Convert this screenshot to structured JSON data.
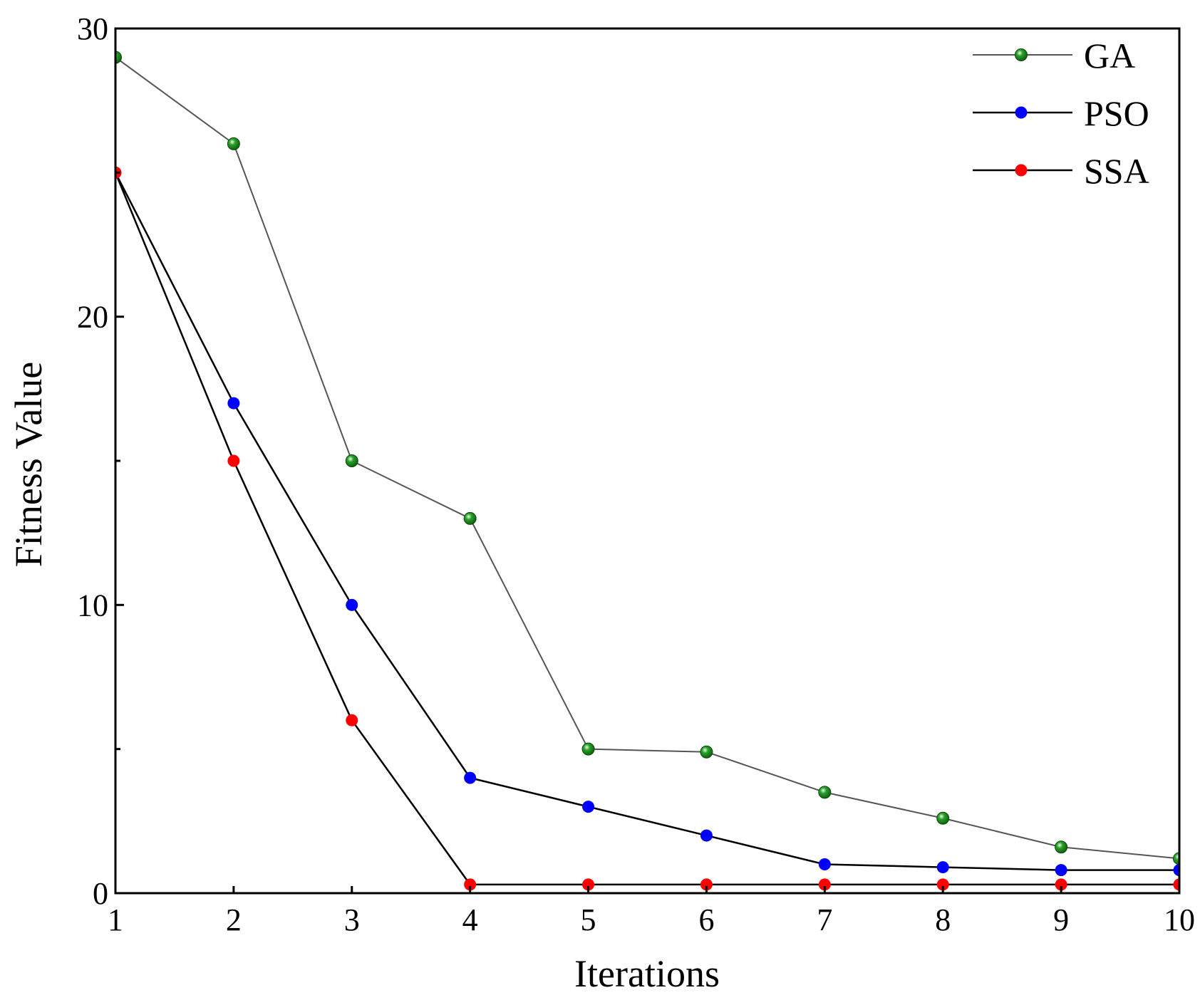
{
  "chart_data": {
    "type": "line",
    "title": "",
    "xlabel": "Iterations",
    "ylabel": "Fitness Value",
    "x": [
      1,
      2,
      3,
      4,
      5,
      6,
      7,
      8,
      9,
      10
    ],
    "xlim": [
      1,
      10
    ],
    "ylim": [
      0,
      30
    ],
    "xticks": [
      "1",
      "2",
      "3",
      "4",
      "5",
      "6",
      "7",
      "8",
      "9",
      "10"
    ],
    "yticks": [
      "0",
      "10",
      "20",
      "30"
    ],
    "grid": false,
    "legend_position": "top-right",
    "series": [
      {
        "name": "GA",
        "color": "#1a8a1a",
        "line_color": "#555555",
        "values": [
          29,
          26,
          15,
          13,
          5,
          4.9,
          3.5,
          2.6,
          1.6,
          1.2
        ]
      },
      {
        "name": "PSO",
        "color": "#0000ff",
        "line_color": "#000000",
        "values": [
          25,
          17,
          10,
          4,
          3,
          2,
          1,
          0.9,
          0.8,
          0.8
        ]
      },
      {
        "name": "SSA",
        "color": "#ff0000",
        "line_color": "#000000",
        "values": [
          25,
          15,
          6,
          0.3,
          0.3,
          0.3,
          0.3,
          0.3,
          0.3,
          0.3
        ]
      }
    ]
  }
}
